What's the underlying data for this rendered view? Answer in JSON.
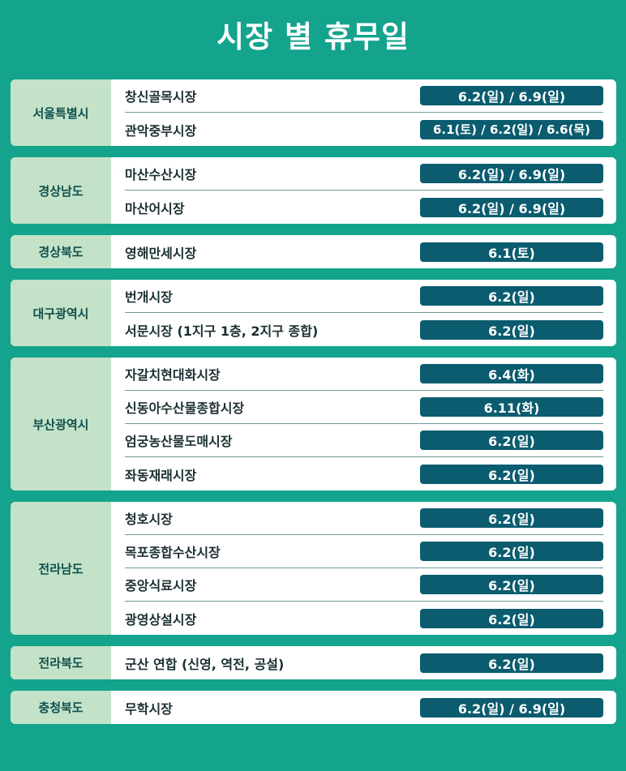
{
  "title": "시장 별 휴무일",
  "colors": {
    "background": "#14a38c",
    "region_bg": "#c3e2c8",
    "date_badge": "#0b5c6f"
  },
  "groups": [
    {
      "region": "서울특별시",
      "markets": [
        {
          "name": "창신골목시장",
          "dates": "6.2(일) / 6.9(일)"
        },
        {
          "name": "관악중부시장",
          "dates": "6.1(토) / 6.2(일) / 6.6(목)"
        }
      ]
    },
    {
      "region": "경상남도",
      "markets": [
        {
          "name": "마산수산시장",
          "dates": "6.2(일) / 6.9(일)"
        },
        {
          "name": "마산어시장",
          "dates": "6.2(일) / 6.9(일)"
        }
      ]
    },
    {
      "region": "경상북도",
      "markets": [
        {
          "name": "영해만세시장",
          "dates": "6.1(토)"
        }
      ]
    },
    {
      "region": "대구광역시",
      "markets": [
        {
          "name": "번개시장",
          "dates": "6.2(일)"
        },
        {
          "name": "서문시장 (1지구 1층, 2지구 종합)",
          "dates": "6.2(일)"
        }
      ]
    },
    {
      "region": "부산광역시",
      "markets": [
        {
          "name": "자갈치현대화시장",
          "dates": "6.4(화)"
        },
        {
          "name": "신동아수산물종합시장",
          "dates": "6.11(화)"
        },
        {
          "name": "엄궁농산물도매시장",
          "dates": "6.2(일)"
        },
        {
          "name": "좌동재래시장",
          "dates": "6.2(일)"
        }
      ]
    },
    {
      "region": "전라남도",
      "markets": [
        {
          "name": "청호시장",
          "dates": "6.2(일)"
        },
        {
          "name": "목포종합수산시장",
          "dates": "6.2(일)"
        },
        {
          "name": "중앙식료시장",
          "dates": "6.2(일)"
        },
        {
          "name": "광영상설시장",
          "dates": "6.2(일)"
        }
      ]
    },
    {
      "region": "전라북도",
      "markets": [
        {
          "name": "군산 연합 (신영, 역전, 공설)",
          "dates": "6.2(일)"
        }
      ]
    },
    {
      "region": "충청북도",
      "markets": [
        {
          "name": "무학시장",
          "dates": "6.2(일) / 6.9(일)"
        }
      ]
    }
  ]
}
